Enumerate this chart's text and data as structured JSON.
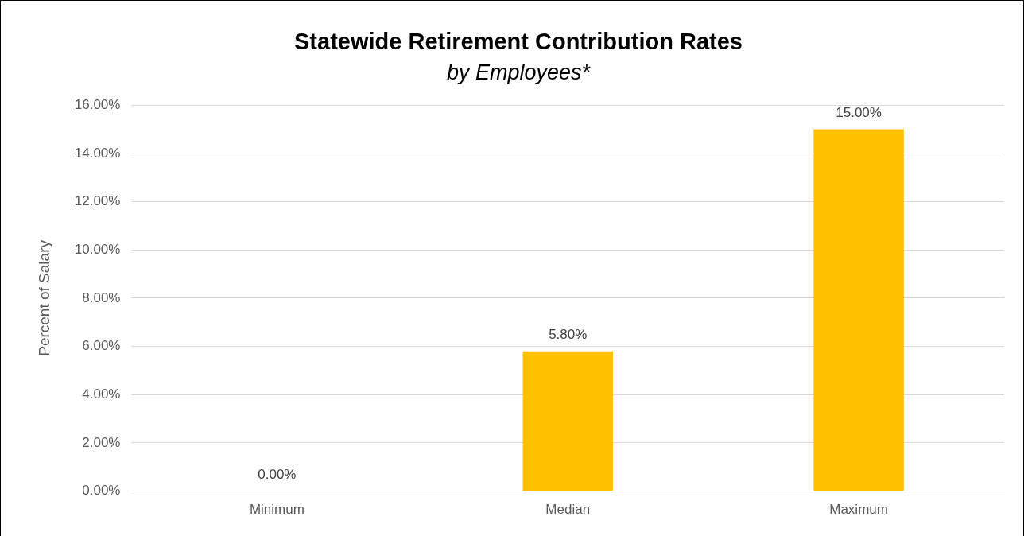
{
  "chart_data": {
    "type": "bar",
    "title": "Statewide Retirement Contribution Rates",
    "subtitle": "by Employees*",
    "ylabel": "Percent of Salary",
    "categories": [
      "Minimum",
      "Median",
      "Maximum"
    ],
    "values": [
      0,
      5.8,
      15
    ],
    "value_labels": [
      "0.00%",
      "5.80%",
      "15.00%"
    ],
    "color": "#ffc000",
    "ylim": [
      0,
      16
    ],
    "yticks": [
      {
        "value": 0,
        "label": "0.00%"
      },
      {
        "value": 2,
        "label": "2.00%"
      },
      {
        "value": 4,
        "label": "4.00%"
      },
      {
        "value": 6,
        "label": "6.00%"
      },
      {
        "value": 8,
        "label": "8.00%"
      },
      {
        "value": 10,
        "label": "10.00%"
      },
      {
        "value": 12,
        "label": "12.00%"
      },
      {
        "value": 14,
        "label": "14.00%"
      },
      {
        "value": 16,
        "label": "16.00%"
      }
    ],
    "grid": "y"
  }
}
